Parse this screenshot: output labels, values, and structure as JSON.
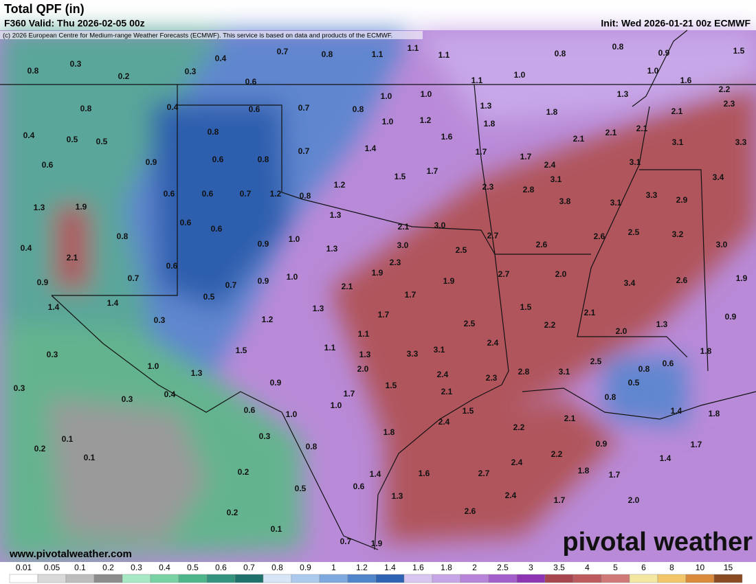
{
  "header": {
    "title": "Total QPF (in)",
    "valid": "F360 Valid: Thu 2026-02-05 00z",
    "init": "Init: Wed 2026-01-21 00z ECMWF",
    "copyright": "(c) 2026 European Centre for Medium-range Weather Forecasts (ECMWF). This service is based on data and products of the ECMWF."
  },
  "map": {
    "labels": [
      "0.3",
      "0.8",
      "0.2",
      "0.3",
      "0.4",
      "0.7",
      "0.8",
      "1.1",
      "1.1",
      "1.1",
      "0.8",
      "0.8",
      "0.9",
      "1.5",
      "0.6",
      "1.0",
      "1.0",
      "1.6",
      "1.1",
      "2.2",
      "0.8",
      "0.4",
      "0.6",
      "0.7",
      "0.8",
      "1.0",
      "1.0",
      "1.3",
      "1.3",
      "1.8",
      "2.1",
      "2.3",
      "0.4",
      "0.5",
      "0.5",
      "0.8",
      "1.0",
      "1.2",
      "1.6",
      "1.8",
      "2.1",
      "2.1",
      "2.1",
      "3.1",
      "3.3",
      "0.6",
      "0.9",
      "0.6",
      "0.8",
      "0.7",
      "1.4",
      "1.7",
      "1.7",
      "2.4",
      "3.1",
      "1.5",
      "1.7",
      "1.2",
      "2.3",
      "2.8",
      "3.1",
      "3.4",
      "0.6",
      "0.6",
      "0.7",
      "1.2",
      "0.8",
      "3.8",
      "3.1",
      "3.3",
      "2.9",
      "1.3",
      "1.9",
      "1.3",
      "0.6",
      "0.6",
      "2.1",
      "3.0",
      "2.7",
      "2.6",
      "2.6",
      "2.5",
      "3.2",
      "0.8",
      "0.9",
      "1.0",
      "3.0",
      "2.5",
      "3.0",
      "0.4",
      "2.1",
      "1.3",
      "0.6",
      "2.3",
      "1.9",
      "2.7",
      "2.0",
      "3.4",
      "2.6",
      "1.9",
      "0.9",
      "0.7",
      "0.7",
      "0.9",
      "1.0",
      "2.1",
      "1.9",
      "0.5",
      "1.7",
      "1.4",
      "1.4",
      "1.3",
      "1.5",
      "2.1",
      "0.3",
      "1.2",
      "1.7",
      "2.5",
      "2.2",
      "1.3",
      "0.9",
      "0.3",
      "1.1",
      "2.4",
      "2.0",
      "1.8",
      "1.5",
      "1.1",
      "1.3",
      "3.3",
      "3.1",
      "1.0",
      "1.3",
      "2.0",
      "2.4",
      "2.5",
      "0.8",
      "0.6",
      "0.3",
      "0.9",
      "1.5",
      "2.3",
      "2.8",
      "3.1",
      "0.5",
      "0.4",
      "1.7",
      "2.1",
      "0.3",
      "1.0",
      "0.8",
      "0.6",
      "1.0",
      "1.5",
      "2.4",
      "2.1",
      "1.4",
      "1.8",
      "0.1",
      "0.3",
      "1.8",
      "2.2",
      "0.2",
      "0.1",
      "0.8",
      "0.9",
      "1.7",
      "2.2",
      "1.4",
      "2.4",
      "0.2",
      "1.4",
      "1.6",
      "2.7",
      "1.8",
      "1.7",
      "0.5",
      "0.6",
      "1.3",
      "2.4",
      "1.7",
      "2.0",
      "0.2",
      "2.6",
      "0.1",
      "0.7",
      "1.9"
    ]
  },
  "footer": {
    "url": "www.pivotalweather.com",
    "logo": "pivotal weather"
  },
  "legend": {
    "ticks": [
      "0.01",
      "0.05",
      "0.1",
      "0.2",
      "0.3",
      "0.4",
      "0.5",
      "0.6",
      "0.7",
      "0.8",
      "0.9",
      "1",
      "1.2",
      "1.4",
      "1.6",
      "1.8",
      "2",
      "2.5",
      "3",
      "3.5",
      "4",
      "5",
      "6",
      "8",
      "10",
      "15"
    ],
    "colors": [
      "#ffffff",
      "#d9d9d9",
      "#bdbdbd",
      "#8c8c8c",
      "#a6e9c4",
      "#78d2a4",
      "#4fb68c",
      "#33937c",
      "#1f726c",
      "#d6e6f7",
      "#abcaee",
      "#7ea9de",
      "#5084cb",
      "#2e62b2",
      "#d8c6f0",
      "#c6a6e6",
      "#b784da",
      "#a55fcb",
      "#8d35b3",
      "#a8464f",
      "#bd5a5e",
      "#d07a78",
      "#f4e7a2",
      "#f4c66a",
      "#d98a3a",
      "#8a4a22"
    ]
  }
}
